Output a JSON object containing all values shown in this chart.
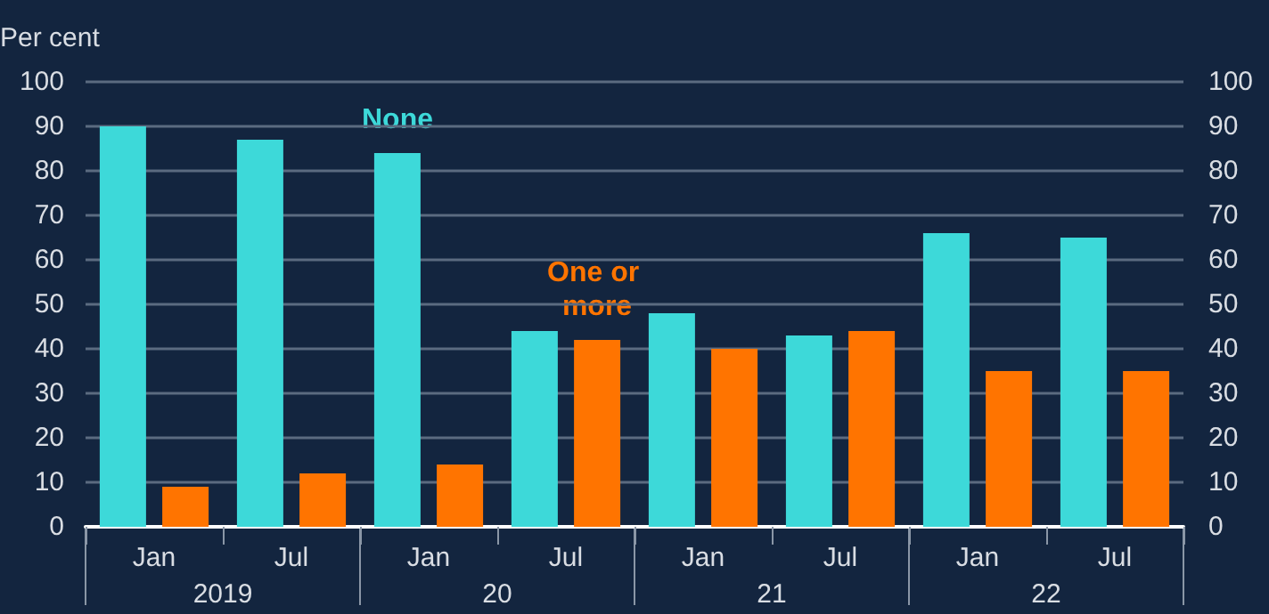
{
  "chart_data": {
    "type": "bar",
    "ylabel": "Per cent",
    "categories": [
      "Jan",
      "Jul",
      "Jan",
      "Jul",
      "Jan",
      "Jul",
      "Jan",
      "Jul"
    ],
    "series": [
      {
        "name": "None",
        "color": "#3dd9d9",
        "values": [
          90,
          87,
          84,
          44,
          48,
          43,
          66,
          65
        ]
      },
      {
        "name": "One or more",
        "color": "#ff7400",
        "values": [
          9,
          12,
          14,
          42,
          40,
          44,
          35,
          35
        ]
      }
    ],
    "annotations": [
      "2019",
      "20",
      "21",
      "22"
    ],
    "ylim": [
      0,
      100
    ],
    "yticks": [
      0,
      10,
      20,
      30,
      40,
      50,
      60,
      70,
      80,
      90,
      100
    ],
    "y2lim": [
      0,
      100
    ],
    "y2ticks": [
      0,
      10,
      20,
      30,
      40,
      50,
      60,
      70,
      80,
      90,
      100
    ],
    "grid": "y",
    "legend": false
  }
}
